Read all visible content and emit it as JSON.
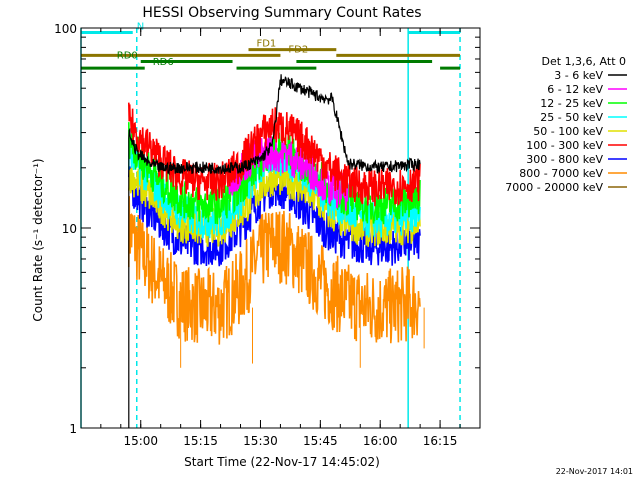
{
  "chart_data": {
    "type": "line",
    "title": "HESSI Observing Summary Count Rates",
    "xlabel": "Start Time (22-Nov-17 14:45:02)",
    "ylabel": "Count Rate (s⁻¹ detector⁻¹)",
    "y_scale": "log",
    "ylim": [
      1,
      100
    ],
    "xlim": [
      "14:45:02",
      "16:25:00"
    ],
    "x_ticks": [
      "15:00",
      "15:15",
      "15:30",
      "15:45",
      "16:00",
      "16:15"
    ],
    "y_ticks": [
      "1",
      "10",
      "100"
    ],
    "footer_date": "22-Nov-2017 14:01",
    "legend": {
      "header": "Det 1,3,6, Att 0",
      "position": "right",
      "entries": [
        {
          "label": "3 - 6 keV",
          "color": "#000000"
        },
        {
          "label": "6 - 12 keV",
          "color": "#ff00ff"
        },
        {
          "label": "12 - 25 keV",
          "color": "#00ff00"
        },
        {
          "label": "25 - 50 keV",
          "color": "#00ffff"
        },
        {
          "label": "50 - 100 keV",
          "color": "#e0e000"
        },
        {
          "label": "100 - 300 keV",
          "color": "#ff0000"
        },
        {
          "label": "300 - 800 keV",
          "color": "#0000ff"
        },
        {
          "label": "800 - 7000 keV",
          "color": "#ff8c00"
        },
        {
          "label": "7000 - 20000 keV",
          "color": "#8b6508"
        }
      ]
    },
    "series": [
      {
        "name": "3 - 6 keV",
        "color": "#000000",
        "x": [
          "14:57",
          "14:59",
          "15:02",
          "15:05",
          "15:10",
          "15:15",
          "15:20",
          "15:25",
          "15:30",
          "15:33",
          "15:35",
          "15:40",
          "15:45",
          "15:48",
          "15:52",
          "16:00",
          "16:10"
        ],
        "y": [
          30,
          24,
          21,
          20,
          20,
          20,
          20,
          20,
          22,
          26,
          55,
          50,
          45,
          44,
          21,
          20,
          21
        ]
      },
      {
        "name": "6 - 12 keV",
        "color": "#ff00ff",
        "x": [
          "15:22",
          "15:27",
          "15:32",
          "15:37",
          "15:42",
          "15:47",
          "15:52"
        ],
        "y": [
          17,
          22,
          24,
          23,
          20,
          16,
          15
        ]
      },
      {
        "name": "12 - 25 keV",
        "color": "#00ff00",
        "x": [
          "14:57",
          "15:00",
          "15:05",
          "15:10",
          "15:15",
          "15:20",
          "15:25",
          "15:30",
          "15:33",
          "15:37",
          "15:42",
          "15:47",
          "15:52",
          "15:57",
          "16:02",
          "16:10"
        ],
        "y": [
          28,
          22,
          17,
          14,
          13,
          13,
          16,
          22,
          25,
          24,
          20,
          16,
          14,
          13,
          13,
          14
        ]
      },
      {
        "name": "25 - 50 keV",
        "color": "#00ffff",
        "x": [
          "14:57",
          "15:00",
          "15:05",
          "15:10",
          "15:15",
          "15:20",
          "15:25",
          "15:30",
          "15:33",
          "15:37",
          "15:42",
          "15:47",
          "15:52",
          "15:57",
          "16:02",
          "16:10"
        ],
        "y": [
          24,
          20,
          15,
          12,
          11,
          11,
          14,
          20,
          23,
          22,
          18,
          14,
          12,
          11,
          11,
          12
        ]
      },
      {
        "name": "50 - 100 keV",
        "color": "#e0e000",
        "x": [
          "14:57",
          "15:00",
          "15:05",
          "15:10",
          "15:15",
          "15:20",
          "15:25",
          "15:30",
          "15:33",
          "15:37",
          "15:42",
          "15:47",
          "15:52",
          "15:57",
          "16:02",
          "16:10"
        ],
        "y": [
          19,
          16,
          13,
          10.5,
          10,
          10,
          12,
          16,
          18,
          17.5,
          15,
          12,
          10.5,
          10,
          10,
          10.5
        ]
      },
      {
        "name": "100 - 300 keV",
        "color": "#ff0000",
        "x": [
          "14:57",
          "15:00",
          "15:05",
          "15:10",
          "15:15",
          "15:20",
          "15:25",
          "15:30",
          "15:33",
          "15:37",
          "15:42",
          "15:47",
          "15:52",
          "15:57",
          "16:02",
          "16:10"
        ],
        "y": [
          34,
          28,
          22,
          18,
          17,
          17,
          21,
          29,
          33,
          31,
          26,
          20,
          17,
          16,
          16,
          17
        ]
      },
      {
        "name": "300 - 800 keV",
        "color": "#0000ff",
        "x": [
          "14:57",
          "15:00",
          "15:05",
          "15:10",
          "15:15",
          "15:20",
          "15:25",
          "15:30",
          "15:33",
          "15:37",
          "15:42",
          "15:47",
          "15:52",
          "15:57",
          "16:02",
          "16:10"
        ],
        "y": [
          17,
          13.5,
          10.5,
          8.5,
          8,
          8,
          10,
          14,
          16,
          15,
          12,
          9.5,
          8.5,
          8,
          8,
          8.5
        ]
      },
      {
        "name": "800 - 7000 keV",
        "color": "#ff8c00",
        "x": [
          "14:57",
          "15:00",
          "15:05",
          "15:10",
          "15:15",
          "15:20",
          "15:25",
          "15:30",
          "15:33",
          "15:37",
          "15:42",
          "15:47",
          "15:52",
          "15:57",
          "16:02",
          "16:10"
        ],
        "y": [
          10,
          7.5,
          5.5,
          4.3,
          4,
          4,
          5,
          7.5,
          8.5,
          8,
          6.3,
          5,
          4.3,
          4,
          4,
          4.3
        ]
      }
    ],
    "spikes_low": [
      {
        "x": "15:10",
        "y": 2.0
      },
      {
        "x": "15:28",
        "y": 2.1
      },
      {
        "x": "15:55",
        "y": 2.0
      },
      {
        "x": "16:11",
        "y": 2.5
      }
    ],
    "intervals": [
      {
        "label": "N",
        "color": "#00e8e8",
        "y": 95,
        "x0": "14:45:02",
        "x1": "14:58",
        "labeled": true,
        "label_x": "14:59"
      },
      {
        "label": "",
        "color": "#00e8e8",
        "y": 95,
        "x0": "16:07",
        "x1": "16:20",
        "labeled": false
      },
      {
        "label": "FD1",
        "color": "#8b7500",
        "y": 78,
        "x0": "15:27",
        "x1": "15:49",
        "labeled": true,
        "label_x": "15:29"
      },
      {
        "label": "",
        "color": "#8b7500",
        "y": 73,
        "x0": "14:45:02",
        "x1": "15:35",
        "labeled": false
      },
      {
        "label": "FD2",
        "color": "#8b7500",
        "y": 73,
        "x0": "15:49",
        "x1": "16:20",
        "labeled": true,
        "label_x": "15:37"
      },
      {
        "label": "RD0",
        "color": "#007b00",
        "y": 68,
        "x0": "15:00",
        "x1": "15:23",
        "labeled": true,
        "label_x": "14:54"
      },
      {
        "label": "",
        "color": "#007b00",
        "y": 68,
        "x0": "15:39",
        "x1": "16:13",
        "labeled": false
      },
      {
        "label": "RD6",
        "color": "#007b00",
        "y": 63,
        "x0": "14:45:02",
        "x1": "15:01",
        "labeled": true,
        "label_x": "15:03"
      },
      {
        "label": "",
        "color": "#007b00",
        "y": 63,
        "x0": "15:24",
        "x1": "15:44",
        "labeled": false
      },
      {
        "label": "",
        "color": "#007b00",
        "y": 63,
        "x0": "16:15",
        "x1": "16:20",
        "labeled": false
      }
    ],
    "vlines": [
      {
        "x": "14:45:02",
        "color": "#00e8e8",
        "style": "solid"
      },
      {
        "x": "14:59",
        "color": "#00e8e8",
        "style": "dashed"
      },
      {
        "x": "16:07",
        "color": "#00e8e8",
        "style": "solid"
      },
      {
        "x": "16:20",
        "color": "#00e8e8",
        "style": "dashed"
      }
    ]
  }
}
